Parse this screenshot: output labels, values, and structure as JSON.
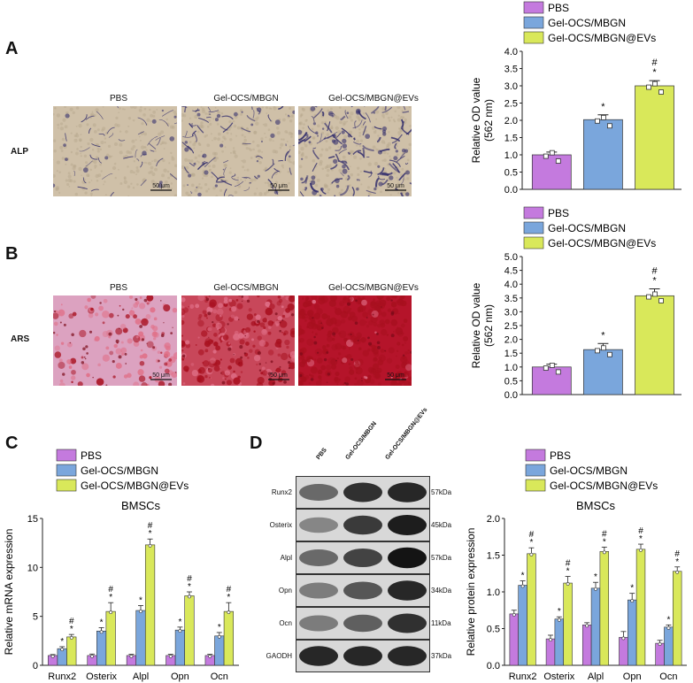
{
  "panels": {
    "A": "A",
    "B": "B",
    "C": "C",
    "D": "D"
  },
  "micrographs": {
    "titles": [
      "PBS",
      "Gel-OCS/MBGN",
      "Gel-OCS/MBGN@EVs"
    ],
    "row_A_label": "ALP",
    "row_B_label": "ARS",
    "scalebar": "50 μm"
  },
  "western_blot": {
    "lanes": [
      "PBS",
      "Gel-OCS/MBGN",
      "Gel-OCS/MBGN@EVs"
    ],
    "proteins": [
      {
        "name": "Runx2",
        "kda": "57kDa"
      },
      {
        "name": "Osterix",
        "kda": "45kDa"
      },
      {
        "name": "Alpl",
        "kda": "57kDa"
      },
      {
        "name": "Opn",
        "kda": "34kDa"
      },
      {
        "name": "Ocn",
        "kda": "11kDa"
      },
      {
        "name": "GAODH",
        "kda": "37kDa"
      }
    ]
  },
  "chart_data": [
    {
      "id": "A",
      "type": "bar",
      "categories": [
        "PBS",
        "Gel-OCS/MBGN",
        "Gel-OCS/MBGN@EVs"
      ],
      "values": [
        1.0,
        2.02,
        3.0
      ],
      "errors": [
        0.08,
        0.14,
        0.15
      ],
      "significance": [
        "",
        "*",
        "#*"
      ],
      "ylabel": "Relative OD value\n(562 nm)",
      "ylabel_lines": [
        "Relative OD value",
        "(562 nm)"
      ],
      "ylim": [
        0,
        4.0
      ],
      "yticks": [
        "0.0",
        "0.5",
        "1.0",
        "1.5",
        "2.0",
        "2.5",
        "3.0",
        "3.5",
        "4.0"
      ],
      "legend": [
        "PBS",
        "Gel-OCS/MBGN",
        "Gel-OCS/MBGN@EVs"
      ],
      "legend_position": "top"
    },
    {
      "id": "B",
      "type": "bar",
      "categories": [
        "PBS",
        "Gel-OCS/MBGN",
        "Gel-OCS/MBGN@EVs"
      ],
      "values": [
        1.0,
        1.63,
        3.58
      ],
      "errors": [
        0.1,
        0.22,
        0.25
      ],
      "significance": [
        "",
        "*",
        "#*"
      ],
      "ylabel_lines": [
        "Relative OD value",
        "(562 nm)"
      ],
      "ylim": [
        0,
        5.0
      ],
      "yticks": [
        "0.0",
        "0.5",
        "1.0",
        "1.5",
        "2.0",
        "2.5",
        "3.0",
        "3.5",
        "4.0",
        "4.5",
        "5.0"
      ],
      "legend": [
        "PBS",
        "Gel-OCS/MBGN",
        "Gel-OCS/MBGN@EVs"
      ],
      "legend_position": "top"
    },
    {
      "id": "C",
      "type": "bar",
      "title": "BMSCs",
      "categories": [
        "Runx2",
        "Osterix",
        "Alpl",
        "Opn",
        "Ocn"
      ],
      "series": [
        {
          "name": "PBS",
          "values": [
            1.0,
            1.0,
            1.0,
            1.0,
            1.0
          ],
          "errors": [
            0.1,
            0.15,
            0.12,
            0.12,
            0.12
          ],
          "significance": [
            "",
            "",
            "",
            "",
            ""
          ]
        },
        {
          "name": "Gel-OCS/MBGN",
          "values": [
            1.7,
            3.5,
            5.6,
            3.6,
            3.0
          ],
          "errors": [
            0.2,
            0.35,
            0.5,
            0.3,
            0.35
          ],
          "significance": [
            "*",
            "*",
            "*",
            "*",
            "*"
          ]
        },
        {
          "name": "Gel-OCS/MBGN@EVs",
          "values": [
            2.9,
            5.5,
            12.3,
            7.1,
            5.5
          ],
          "errors": [
            0.25,
            0.9,
            0.6,
            0.4,
            0.9
          ],
          "significance": [
            "#*",
            "#*",
            "#*",
            "#*",
            "#*"
          ]
        }
      ],
      "ylabel": "Relative mRNA expression",
      "ylim": [
        0,
        15
      ],
      "yticks": [
        "0",
        "5",
        "10",
        "15"
      ],
      "legend_position": "top"
    },
    {
      "id": "D",
      "type": "bar",
      "title": "BMSCs",
      "categories": [
        "Runx2",
        "Osterix",
        "Alpl",
        "Opn",
        "Ocn"
      ],
      "series": [
        {
          "name": "PBS",
          "values": [
            0.7,
            0.36,
            0.55,
            0.38,
            0.3
          ],
          "errors": [
            0.05,
            0.05,
            0.03,
            0.08,
            0.04
          ],
          "significance": [
            "",
            "",
            "",
            "",
            ""
          ]
        },
        {
          "name": "Gel-OCS/MBGN",
          "values": [
            1.09,
            0.63,
            1.05,
            0.89,
            0.52
          ],
          "errors": [
            0.06,
            0.03,
            0.08,
            0.09,
            0.03
          ],
          "significance": [
            "*",
            "*",
            "*",
            "*",
            "*"
          ]
        },
        {
          "name": "Gel-OCS/MBGN@EVs",
          "values": [
            1.52,
            1.12,
            1.55,
            1.58,
            1.28
          ],
          "errors": [
            0.08,
            0.09,
            0.06,
            0.07,
            0.06
          ],
          "significance": [
            "#*",
            "#*",
            "#*",
            "#*",
            "#*"
          ]
        }
      ],
      "ylabel": "Relative protein expression",
      "ylim": [
        0,
        2.0
      ],
      "yticks": [
        "0.0",
        "0.5",
        "1.0",
        "1.5",
        "2.0"
      ],
      "legend_position": "top"
    }
  ],
  "colors": {
    "pbs": "#c47ade",
    "mbgn": "#7aa6dc",
    "evs": "#d9e85a",
    "alp_stain": "#35306e",
    "ars_stain": "#c8182a"
  }
}
